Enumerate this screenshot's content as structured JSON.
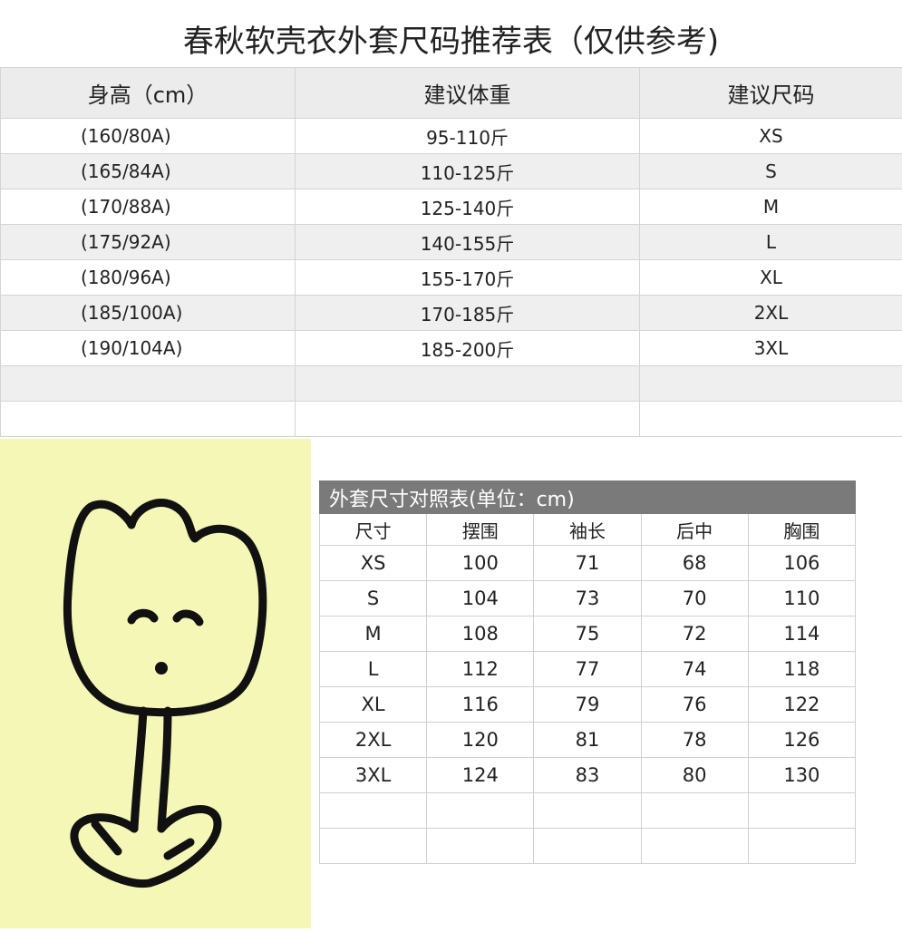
{
  "title": "春秋软壳衣外套尺码推荐表（仅供参考)",
  "recommend": {
    "headers": [
      "身高（cm）",
      "建议体重",
      "建议尺码"
    ],
    "rows": [
      [
        "(160/80A)",
        "95-110斤",
        "XS"
      ],
      [
        "(165/84A)",
        "110-125斤",
        "S"
      ],
      [
        "(170/88A)",
        "125-140斤",
        "M"
      ],
      [
        "(175/92A)",
        "140-155斤",
        "L"
      ],
      [
        "(180/96A)",
        "155-170斤",
        "XL"
      ],
      [
        "(185/100A)",
        "170-185斤",
        "2XL"
      ],
      [
        "(190/104A)",
        "185-200斤",
        "3XL"
      ],
      [
        "",
        "",
        ""
      ],
      [
        "",
        "",
        ""
      ]
    ]
  },
  "size_chart": {
    "caption": "外套尺寸对照表(单位：cm)",
    "headers": [
      "尺寸",
      "摆围",
      "袖长",
      "后中",
      "胸围"
    ],
    "rows": [
      [
        "XS",
        "100",
        "71",
        "68",
        "106"
      ],
      [
        "S",
        "104",
        "73",
        "70",
        "110"
      ],
      [
        "M",
        "108",
        "75",
        "72",
        "114"
      ],
      [
        "L",
        "112",
        "77",
        "74",
        "118"
      ],
      [
        "XL",
        "116",
        "79",
        "76",
        "122"
      ],
      [
        "2XL",
        "120",
        "81",
        "78",
        "126"
      ],
      [
        "3XL",
        "124",
        "83",
        "80",
        "130"
      ],
      [
        "",
        "",
        "",
        "",
        ""
      ],
      [
        "",
        "",
        "",
        "",
        ""
      ]
    ]
  },
  "colors": {
    "sticker_bg": "#f4f7b6",
    "caption_bg": "#7a7a7a"
  }
}
